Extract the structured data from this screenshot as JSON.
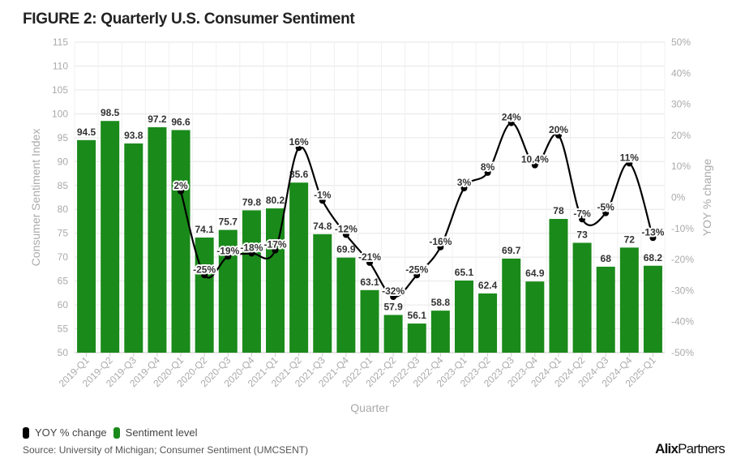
{
  "title": "FIGURE 2: Quarterly U.S. Consumer Sentiment",
  "legend": [
    {
      "label": "YOY % change",
      "color": "#000000"
    },
    {
      "label": "Sentiment level",
      "color": "#1a8a1a"
    }
  ],
  "source": "Source: University of Michigan; Consumer Sentiment (UMCSENT)",
  "logo": {
    "bold": "Alix",
    "rest": "Partners"
  },
  "chart_data": {
    "type": "bar+line",
    "xlabel": "Quarter",
    "ylabel": "Consumer Sentiment Index",
    "y2label": "YOY % change",
    "ylim": [
      50,
      115
    ],
    "y2lim": [
      -50,
      50
    ],
    "yticks": [
      50,
      55,
      60,
      65,
      70,
      75,
      80,
      85,
      90,
      95,
      100,
      105,
      110,
      115
    ],
    "y2ticks": [
      -50,
      -40,
      -30,
      -20,
      -10,
      0,
      10,
      20,
      30,
      40,
      50
    ],
    "grid": true,
    "legend_position": "bottom-left",
    "categories": [
      "2019-Q1",
      "2019-Q2",
      "2019-Q3",
      "2019-Q4",
      "2020-Q1",
      "2020-Q2",
      "2020-Q3",
      "2020-Q4",
      "2021-Q1",
      "2021-Q2",
      "2021-Q3",
      "2021-Q4",
      "2022-Q1",
      "2022-Q2",
      "2022-Q3",
      "2022-Q4",
      "2023-Q1",
      "2023-Q2",
      "2023-Q3",
      "2023-Q4",
      "2024-Q1",
      "2024-Q2",
      "2024-Q3",
      "2024-Q4",
      "2025-Q1"
    ],
    "series": [
      {
        "name": "Sentiment level",
        "type": "bar",
        "axis": "left",
        "color": "#1a8a1a",
        "values": [
          94.5,
          98.5,
          93.8,
          97.2,
          96.6,
          74.1,
          75.7,
          79.8,
          80.2,
          85.6,
          74.8,
          69.9,
          63.1,
          57.9,
          56.1,
          58.8,
          65.1,
          62.4,
          69.7,
          64.9,
          78,
          73,
          68,
          72,
          68.2
        ]
      },
      {
        "name": "YOY % change",
        "type": "line",
        "axis": "right",
        "color": "#000000",
        "values": [
          null,
          null,
          null,
          null,
          2,
          -25,
          -19,
          -18,
          -17,
          16,
          -1,
          -12,
          -21,
          -32,
          -25,
          -16,
          3,
          8,
          24,
          10.4,
          20,
          -7,
          -5,
          11,
          -13
        ]
      }
    ]
  }
}
